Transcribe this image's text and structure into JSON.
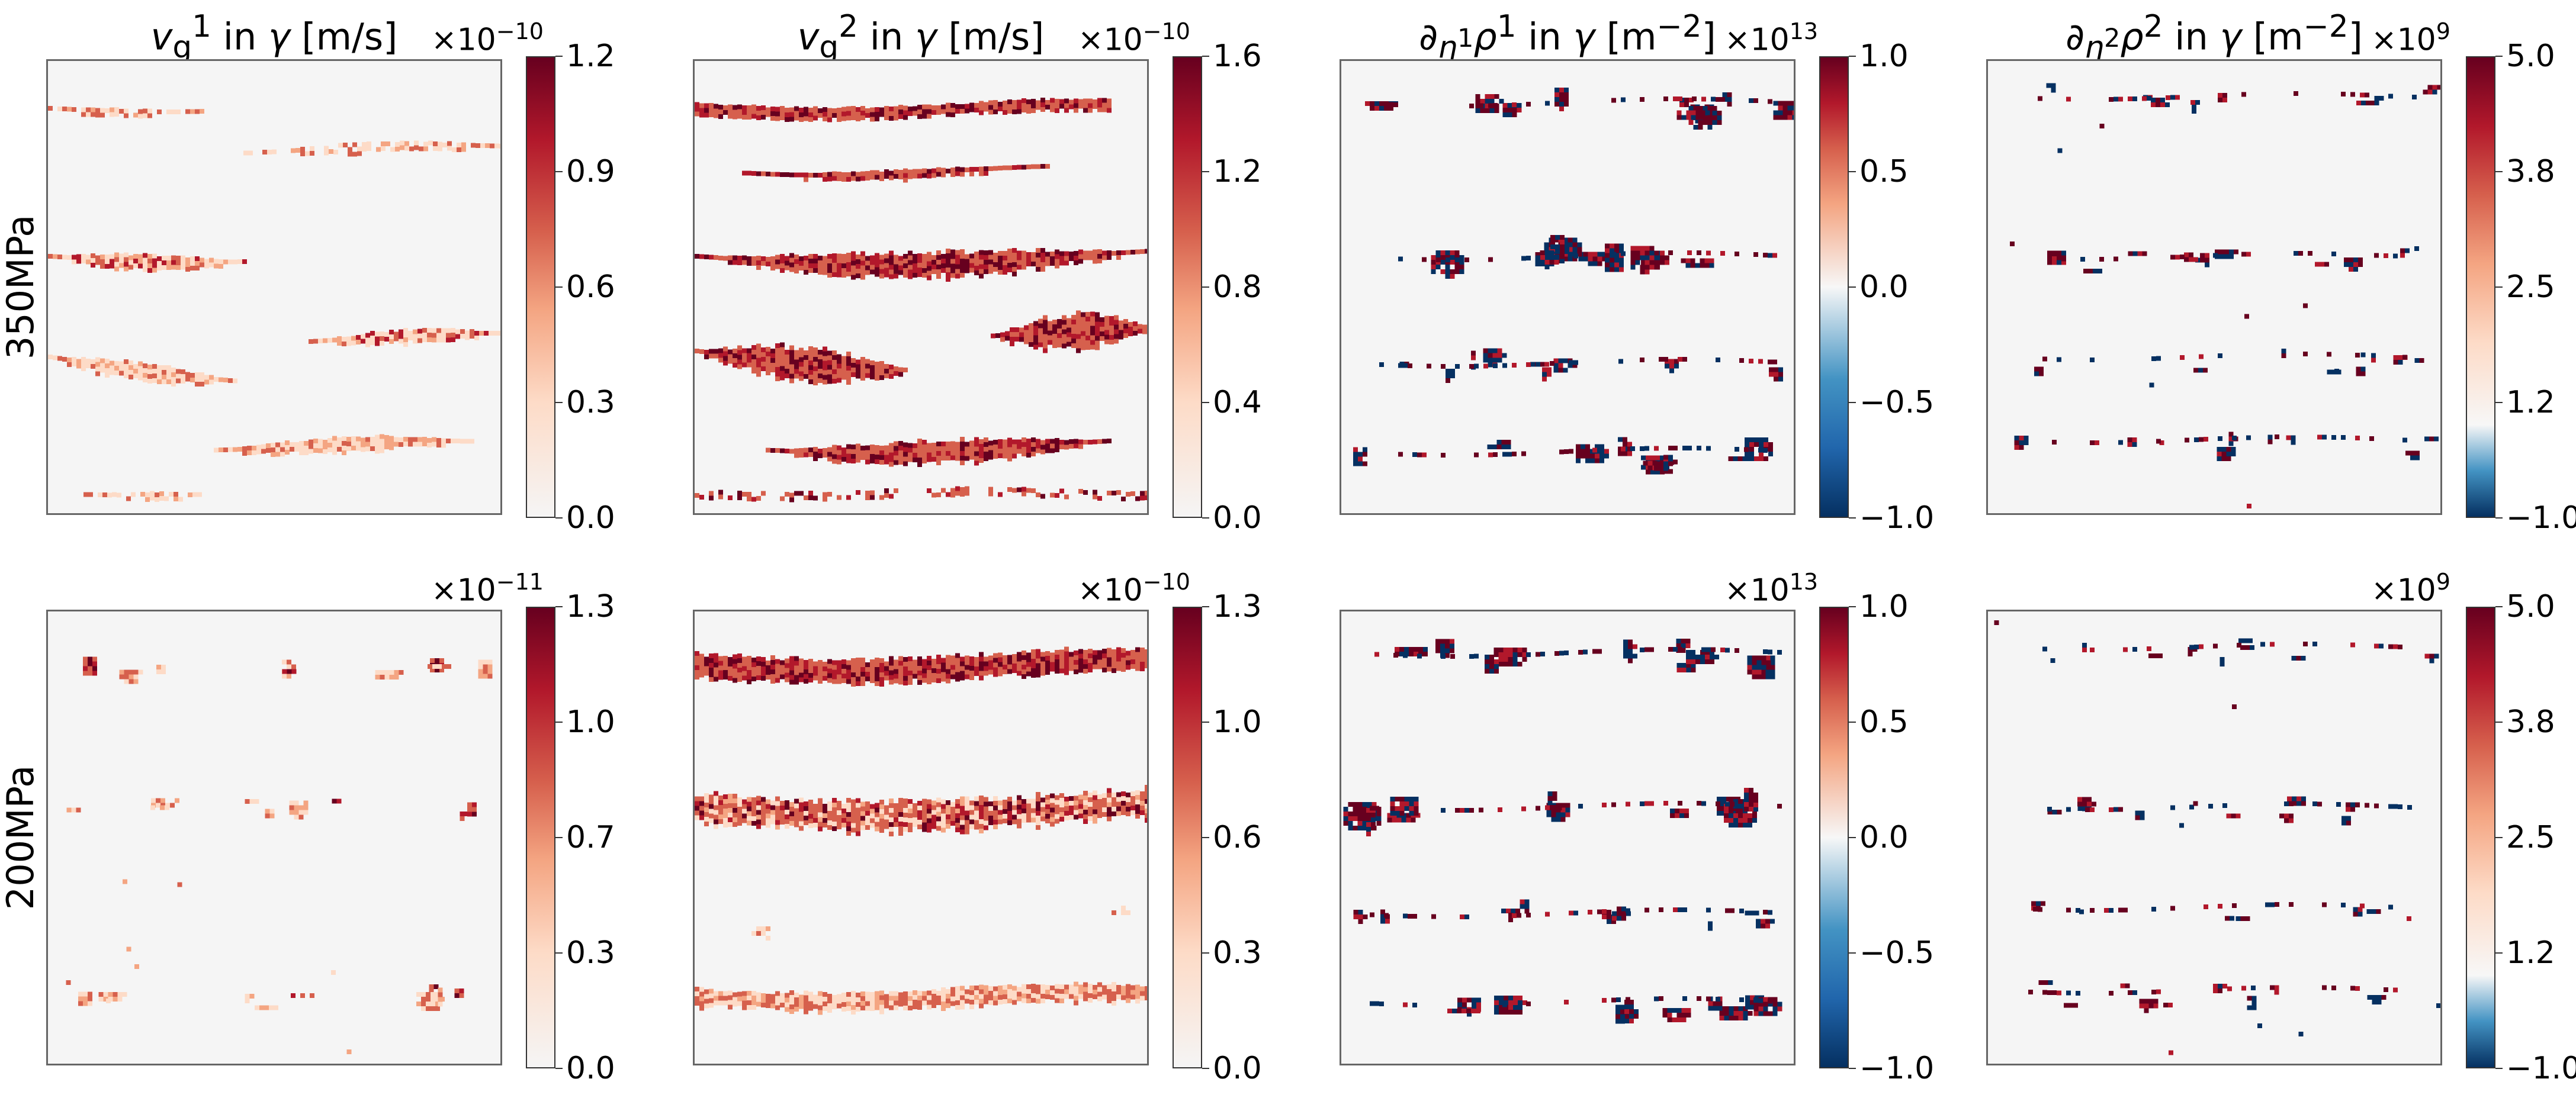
{
  "chart_data": [
    {
      "type": "heatmap",
      "id": "p00",
      "column": 0,
      "row": 0,
      "row_label": "350MPa",
      "title_html": "<i>v</i><sub>g</sub><sup>1</sup> in <i>γ</i> [m/s]",
      "colormap": "sequential-reds",
      "clim": [
        0.0,
        1.2
      ],
      "scale_label": "×10^-10",
      "colorbar_ticks": [
        "0.0",
        "0.3",
        "0.6",
        "0.9",
        "1.2"
      ],
      "pattern": "wispy-bands"
    },
    {
      "type": "heatmap",
      "id": "p01",
      "column": 1,
      "row": 0,
      "row_label": "350MPa",
      "title_html": "<i>v</i><sub>g</sub><sup>2</sup> in <i>γ</i> [m/s]",
      "colormap": "sequential-reds",
      "clim": [
        0.0,
        1.6
      ],
      "scale_label": "×10^-10",
      "colorbar_ticks": [
        "0.0",
        "0.4",
        "0.8",
        "1.2",
        "1.6"
      ],
      "pattern": "solid-bands"
    },
    {
      "type": "heatmap",
      "id": "p02",
      "column": 2,
      "row": 0,
      "row_label": "350MPa",
      "title_html": "∂<sub><i>η</i><sup>1</sup></sub><i>ρ</i><sup>1</sup> in <i>γ</i> [m<sup>−2</sup>]",
      "colormap": "diverging-RdBu",
      "clim": [
        -1.0,
        1.0
      ],
      "scale_label": "×10^13",
      "colorbar_ticks": [
        "−1.0",
        "−0.5",
        "0.0",
        "0.5",
        "1.0"
      ],
      "pattern": "diverging-clusters"
    },
    {
      "type": "heatmap",
      "id": "p03",
      "column": 3,
      "row": 0,
      "row_label": "350MPa",
      "title_html": "∂<sub><i>η</i><sup>2</sup></sub><i>ρ</i><sup>2</sup> in <i>γ</i> [m<sup>−2</sup>]",
      "colormap": "diverging-RdBu-offset",
      "clim": [
        -1.0,
        5.0
      ],
      "scale_label": "×10^9",
      "colorbar_ticks": [
        "−1.0",
        "1.2",
        "2.5",
        "3.8",
        "5.0"
      ],
      "pattern": "sparse-diverging"
    },
    {
      "type": "heatmap",
      "id": "p10",
      "column": 0,
      "row": 1,
      "row_label": "200MPa",
      "title_html": "",
      "colormap": "sequential-reds",
      "clim": [
        0.0,
        1.3
      ],
      "scale_label": "×10^-11",
      "colorbar_ticks": [
        "0.0",
        "0.3",
        "0.7",
        "1.0",
        "1.3"
      ],
      "pattern": "sparse-spots"
    },
    {
      "type": "heatmap",
      "id": "p11",
      "column": 1,
      "row": 1,
      "row_label": "200MPa",
      "title_html": "",
      "colormap": "sequential-reds",
      "clim": [
        0.0,
        1.3
      ],
      "scale_label": "×10^-10",
      "colorbar_ticks": [
        "0.0",
        "0.3",
        "0.6",
        "1.0",
        "1.3"
      ],
      "pattern": "horizontal-bands"
    },
    {
      "type": "heatmap",
      "id": "p12",
      "column": 2,
      "row": 1,
      "row_label": "200MPa",
      "title_html": "",
      "colormap": "diverging-RdBu",
      "clim": [
        -1.0,
        1.0
      ],
      "scale_label": "×10^13",
      "colorbar_ticks": [
        "−1.0",
        "−0.5",
        "0.0",
        "0.5",
        "1.0"
      ],
      "pattern": "diverging-clusters"
    },
    {
      "type": "heatmap",
      "id": "p13",
      "column": 3,
      "row": 1,
      "row_label": "200MPa",
      "title_html": "",
      "colormap": "diverging-RdBu-offset",
      "clim": [
        -1.0,
        5.0
      ],
      "scale_label": "×10^9",
      "colorbar_ticks": [
        "−1.0",
        "1.2",
        "2.5",
        "3.8",
        "5.0"
      ],
      "pattern": "sparse-diverging"
    }
  ],
  "colors": {
    "background": "#f5f5f5",
    "red_dark": "#67001f",
    "red_mid": "#b2182b",
    "red_light": "#d6604d",
    "orange": "#f4a582",
    "peach": "#fddbc7",
    "blue_dark": "#053061",
    "blue_mid": "#2166ac",
    "blue_light": "#4393c3"
  }
}
